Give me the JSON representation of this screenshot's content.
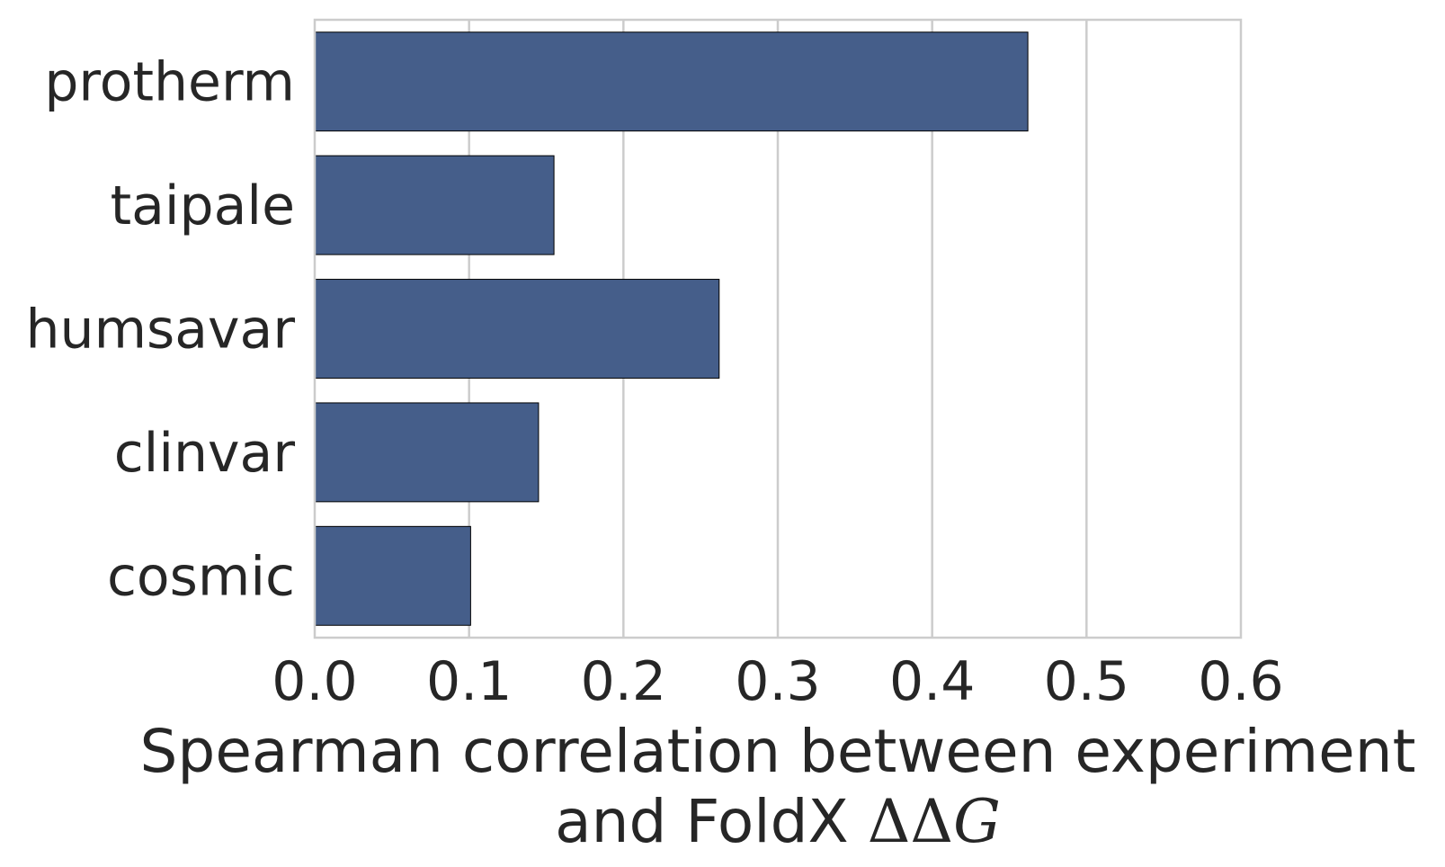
{
  "chart_data": {
    "type": "bar",
    "orientation": "horizontal",
    "categories": [
      "protherm",
      "taipale",
      "humsavar",
      "clinvar",
      "cosmic"
    ],
    "values": [
      0.462,
      0.155,
      0.262,
      0.145,
      0.101
    ],
    "xlim": [
      0,
      0.6
    ],
    "xticks": [
      "0.0",
      "0.1",
      "0.2",
      "0.3",
      "0.4",
      "0.5",
      "0.6"
    ],
    "xlabel_line1": "Spearman correlation between experiment",
    "xlabel_line2_text": "and FoldX ",
    "xlabel_line2_math": "ΔΔ",
    "xlabel_line2_math_var": "G",
    "ylabel": "",
    "grid": "x",
    "colors": {
      "bar": "#455e8a",
      "bar_edge": "#000000",
      "grid": "#cccccc",
      "spine": "#cccccc",
      "text": "#262626"
    }
  }
}
